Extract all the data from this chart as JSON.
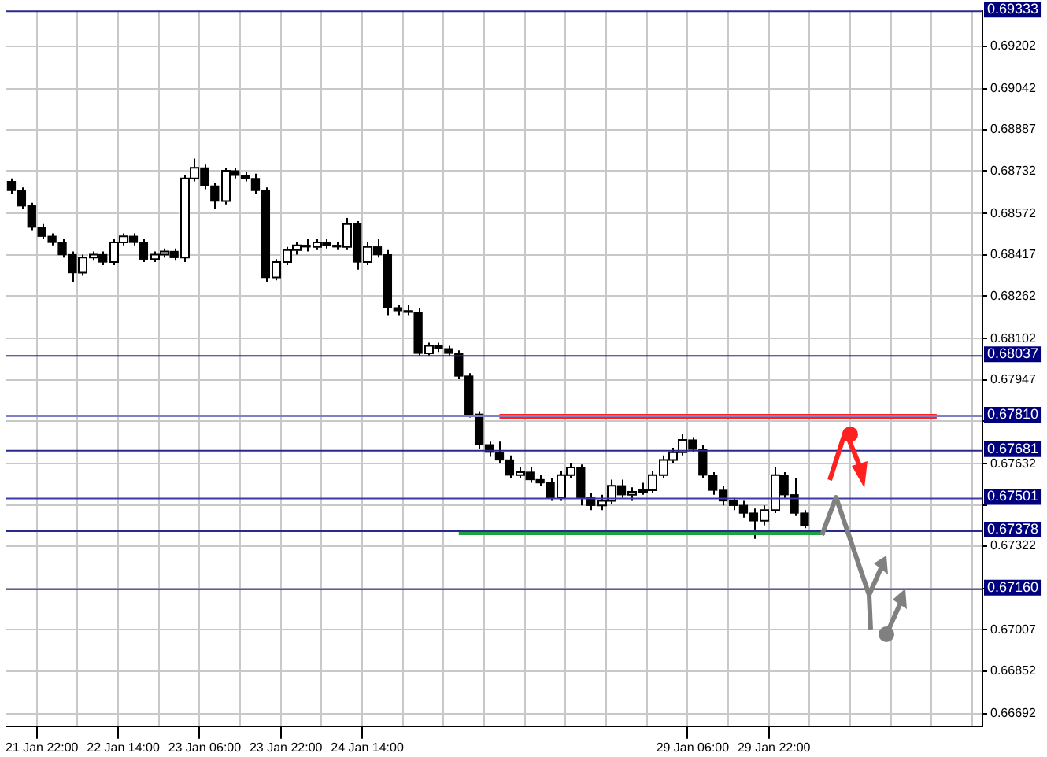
{
  "chart_data": {
    "type": "candlestick",
    "categories": [
      null,
      null,
      null,
      "21 Jan 22:00",
      null,
      null,
      null,
      null,
      null,
      null,
      null,
      "22 Jan 14:00",
      null,
      null,
      null,
      null,
      null,
      null,
      null,
      "23 Jan 06:00",
      null,
      null,
      null,
      null,
      null,
      null,
      null,
      "23 Jan 22:00",
      null,
      null,
      null,
      null,
      null,
      null,
      null,
      "24 Jan 14:00",
      null,
      null,
      null,
      null,
      null,
      null,
      null,
      null,
      null,
      null,
      null,
      null,
      null,
      null,
      null,
      null,
      null,
      null,
      null,
      null,
      null,
      null,
      null,
      null,
      null,
      null,
      null,
      null,
      null,
      null,
      null,
      "29 Jan 06:00",
      null,
      null,
      null,
      null,
      null,
      null,
      null,
      "29 Jan 22:00",
      null,
      null,
      null,
      null,
      null,
      null,
      null,
      null,
      null,
      null,
      null,
      null,
      null,
      null,
      null,
      null,
      null,
      null,
      null,
      null
    ],
    "ohlc": [
      [
        0.68693,
        0.68704,
        0.68647,
        0.68659
      ],
      [
        0.68659,
        0.6867,
        0.6859,
        0.68601
      ],
      [
        0.68601,
        0.68613,
        0.6851,
        0.68521
      ],
      [
        0.68521,
        0.68533,
        0.68476,
        0.68487
      ],
      [
        0.68487,
        0.68498,
        0.68453,
        0.68464
      ],
      [
        0.68464,
        0.68476,
        0.68407,
        0.68418
      ],
      [
        0.68418,
        0.6843,
        0.68315,
        0.6835
      ],
      [
        0.6835,
        0.68418,
        0.68338,
        0.68407
      ],
      [
        0.68407,
        0.6843,
        0.68395,
        0.68418
      ],
      [
        0.68418,
        0.6843,
        0.68378,
        0.6839
      ],
      [
        0.6839,
        0.68476,
        0.68378,
        0.68464
      ],
      [
        0.68464,
        0.68498,
        0.68453,
        0.68487
      ],
      [
        0.68487,
        0.68498,
        0.68453,
        0.68464
      ],
      [
        0.68464,
        0.68476,
        0.6839,
        0.68401
      ],
      [
        0.68401,
        0.6843,
        0.6839,
        0.68418
      ],
      [
        0.68418,
        0.68441,
        0.68407,
        0.6843
      ],
      [
        0.6843,
        0.68441,
        0.68395,
        0.68407
      ],
      [
        0.68407,
        0.68716,
        0.6839,
        0.68704
      ],
      [
        0.68704,
        0.68779,
        0.68693,
        0.68744
      ],
      [
        0.68744,
        0.68756,
        0.68664,
        0.68676
      ],
      [
        0.68676,
        0.68687,
        0.6859,
        0.68619
      ],
      [
        0.68619,
        0.68744,
        0.68607,
        0.68733
      ],
      [
        0.68733,
        0.68744,
        0.68704,
        0.68716
      ],
      [
        0.68716,
        0.68727,
        0.68693,
        0.68704
      ],
      [
        0.68704,
        0.68722,
        0.68647,
        0.68659
      ],
      [
        0.68659,
        0.6867,
        0.68315,
        0.68332
      ],
      [
        0.68332,
        0.68401,
        0.68321,
        0.6839
      ],
      [
        0.6839,
        0.68447,
        0.68378,
        0.68435
      ],
      [
        0.68435,
        0.68464,
        0.68418,
        0.68453
      ],
      [
        0.68453,
        0.68476,
        0.6843,
        0.68447
      ],
      [
        0.68447,
        0.68476,
        0.68435,
        0.68464
      ],
      [
        0.68464,
        0.68476,
        0.68441,
        0.68453
      ],
      [
        0.68453,
        0.68464,
        0.68435,
        0.68447
      ],
      [
        0.68447,
        0.68556,
        0.68435,
        0.68533
      ],
      [
        0.68533,
        0.68544,
        0.68361,
        0.6839
      ],
      [
        0.6839,
        0.68464,
        0.68378,
        0.68447
      ],
      [
        0.68447,
        0.68476,
        0.68407,
        0.68418
      ],
      [
        0.68418,
        0.68435,
        0.6819,
        0.68218
      ],
      [
        0.68218,
        0.6823,
        0.6819,
        0.68207
      ],
      [
        0.68207,
        0.6823,
        0.6819,
        0.68201
      ],
      [
        0.68201,
        0.68218,
        0.68035,
        0.68047
      ],
      [
        0.68047,
        0.68087,
        0.68035,
        0.68075
      ],
      [
        0.68075,
        0.68087,
        0.68052,
        0.68064
      ],
      [
        0.68064,
        0.68075,
        0.68035,
        0.68047
      ],
      [
        0.68047,
        0.68058,
        0.67949,
        0.67961
      ],
      [
        0.67961,
        0.67972,
        0.67806,
        0.67818
      ],
      [
        0.67818,
        0.67829,
        0.67686,
        0.67703
      ],
      [
        0.67703,
        0.67715,
        0.67658,
        0.67675
      ],
      [
        0.67675,
        0.67715,
        0.67635,
        0.67646
      ],
      [
        0.67646,
        0.67663,
        0.67578,
        0.67589
      ],
      [
        0.67589,
        0.67618,
        0.67578,
        0.676
      ],
      [
        0.676,
        0.67618,
        0.6756,
        0.67572
      ],
      [
        0.67572,
        0.67589,
        0.67549,
        0.6756
      ],
      [
        0.6756,
        0.67578,
        0.67492,
        0.67503
      ],
      [
        0.67503,
        0.67606,
        0.67492,
        0.67589
      ],
      [
        0.67589,
        0.67635,
        0.67578,
        0.67618
      ],
      [
        0.67618,
        0.67629,
        0.67475,
        0.67503
      ],
      [
        0.67503,
        0.6752,
        0.67457,
        0.67475
      ],
      [
        0.67475,
        0.67515,
        0.67457,
        0.67492
      ],
      [
        0.67492,
        0.67572,
        0.6748,
        0.67549
      ],
      [
        0.67549,
        0.67572,
        0.67503,
        0.67515
      ],
      [
        0.67515,
        0.67543,
        0.67492,
        0.67526
      ],
      [
        0.67526,
        0.6756,
        0.67515,
        0.67532
      ],
      [
        0.67532,
        0.67606,
        0.6752,
        0.67589
      ],
      [
        0.67589,
        0.67663,
        0.67578,
        0.67646
      ],
      [
        0.67646,
        0.67692,
        0.67635,
        0.67675
      ],
      [
        0.67675,
        0.67743,
        0.67663,
        0.67721
      ],
      [
        0.67721,
        0.67732,
        0.67675,
        0.67686
      ],
      [
        0.67686,
        0.67703,
        0.67578,
        0.67589
      ],
      [
        0.67589,
        0.676,
        0.67515,
        0.67532
      ],
      [
        0.67532,
        0.67549,
        0.67475,
        0.67492
      ],
      [
        0.67492,
        0.67503,
        0.67457,
        0.67475
      ],
      [
        0.67475,
        0.67492,
        0.67429,
        0.67446
      ],
      [
        0.67446,
        0.67463,
        0.67349,
        0.67417
      ],
      [
        0.67417,
        0.67475,
        0.674,
        0.67457
      ],
      [
        0.67457,
        0.67618,
        0.67446,
        0.67589
      ],
      [
        0.67589,
        0.676,
        0.67503,
        0.67515
      ],
      [
        0.67515,
        0.67578,
        0.67435,
        0.67446
      ],
      [
        0.67446,
        0.67457,
        0.67389,
        0.674
      ],
      null,
      null,
      null,
      null,
      null,
      null,
      null,
      null,
      null,
      null,
      null,
      null,
      null,
      null,
      null,
      null,
      null
    ],
    "series": [
      {
        "type": "line",
        "color": "#ff2020",
        "values": [
          null,
          null,
          null,
          null,
          null,
          null,
          null,
          null,
          null,
          null,
          null,
          null,
          null,
          null,
          null,
          null,
          null,
          null,
          null,
          null,
          null,
          null,
          null,
          null,
          null,
          null,
          null,
          null,
          null,
          null,
          null,
          null,
          null,
          null,
          null,
          null,
          null,
          null,
          null,
          null,
          null,
          null,
          null,
          null,
          null,
          null,
          null,
          null,
          0.6781,
          0.6781,
          0.6781,
          0.6781,
          0.6781,
          0.6781,
          0.6781,
          0.6781,
          0.6781,
          0.6781,
          0.6781,
          0.6781,
          0.6781,
          0.6781,
          0.6781,
          0.6781,
          0.6781,
          0.6781,
          0.6781,
          0.6781,
          0.6781,
          0.6781,
          0.6781,
          0.6781,
          0.6781,
          0.6781,
          0.6781,
          0.6781,
          0.6781,
          0.6781,
          0.6781,
          0.6781,
          0.6781,
          0.6781,
          0.6781,
          0.6781,
          0.6781,
          0.6781,
          0.6781,
          0.6781,
          0.6781,
          0.6781,
          0.6781,
          0.6781,
          null,
          null,
          null,
          null
        ]
      },
      {
        "type": "line",
        "color": "#20a040",
        "values": [
          null,
          null,
          null,
          null,
          null,
          null,
          null,
          null,
          null,
          null,
          null,
          null,
          null,
          null,
          null,
          null,
          null,
          null,
          null,
          null,
          null,
          null,
          null,
          null,
          null,
          null,
          null,
          null,
          null,
          null,
          null,
          null,
          null,
          null,
          null,
          null,
          null,
          null,
          null,
          null,
          null,
          null,
          null,
          null,
          0.67372,
          0.67372,
          0.67372,
          0.67372,
          0.67372,
          0.67372,
          0.67372,
          0.67372,
          0.67372,
          0.67372,
          0.67372,
          0.67372,
          0.67372,
          0.67372,
          0.67372,
          0.67372,
          0.67372,
          0.67372,
          0.67372,
          0.67372,
          0.67372,
          0.67372,
          0.67372,
          0.67372,
          0.67372,
          0.67372,
          0.67372,
          0.67372,
          0.67372,
          0.67372,
          0.67372,
          0.67372,
          0.67372,
          0.67372,
          0.67372,
          0.67372,
          0.67372,
          null,
          null,
          null,
          null,
          null,
          null,
          null,
          null,
          null,
          null,
          null,
          null,
          null,
          null,
          null
        ]
      }
    ],
    "ylim": [
      0.66645,
      0.69335
    ],
    "yticks": [
      0.69202,
      0.69042,
      0.68887,
      0.68732,
      0.68572,
      0.68417,
      0.68262,
      0.68102,
      0.67947,
      {
        "value": 0.67792,
        "label": null
      },
      0.67632,
      {
        "value": 0.67477,
        "label": null
      },
      0.67322,
      {
        "value": 0.67162,
        "label": null
      },
      0.67007,
      0.66852,
      0.66692
    ],
    "ref_lines": [
      {
        "axis": "y",
        "value": 0.69333,
        "label": "0.69333",
        "color": "#2a2a8a"
      },
      {
        "axis": "y",
        "value": 0.68037,
        "label": "0.68037",
        "color": "#2a2a8a"
      },
      {
        "axis": "y",
        "value": 0.6781,
        "label": "0.67810",
        "color": "#8080c8"
      },
      {
        "axis": "y",
        "value": 0.67681,
        "label": "0.67681",
        "color": "#2a2a8a"
      },
      {
        "axis": "y",
        "value": 0.67501,
        "label": "0.67501",
        "color": "#3a3aa8"
      },
      {
        "axis": "y",
        "value": 0.67378,
        "label": "0.67378",
        "color": "#2a2a8a"
      },
      {
        "axis": "y",
        "value": 0.6716,
        "label": "0.67160",
        "color": "#2a2a8a"
      }
    ],
    "grid": true,
    "legend": false
  }
}
